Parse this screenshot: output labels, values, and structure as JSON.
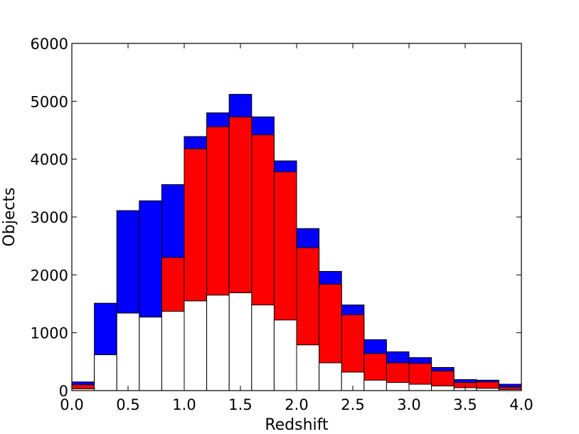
{
  "chart_data": {
    "type": "bar",
    "title": "",
    "xlabel": "Redshift",
    "ylabel": "Objects",
    "xlim": [
      0.0,
      4.0
    ],
    "ylim": [
      0,
      6000
    ],
    "x_ticks": [
      "0.0",
      "0.5",
      "1.0",
      "1.5",
      "2.0",
      "2.5",
      "3.0",
      "3.5",
      "4.0"
    ],
    "y_ticks": [
      "0",
      "1000",
      "2000",
      "3000",
      "4000",
      "5000",
      "6000"
    ],
    "grid": false,
    "legend": "none",
    "bin_edges": [
      0.0,
      0.2,
      0.4,
      0.6,
      0.8,
      1.0,
      1.2,
      1.4,
      1.6,
      1.8,
      2.0,
      2.2,
      2.4,
      2.6,
      2.8,
      3.0,
      3.2,
      3.4,
      3.6,
      3.8,
      4.0
    ],
    "series": [
      {
        "color": "#0000ff",
        "values": [
          150,
          1510,
          3110,
          3280,
          3560,
          4390,
          4800,
          5120,
          4730,
          3970,
          2800,
          2060,
          1480,
          880,
          670,
          570,
          400,
          190,
          180,
          110
        ]
      },
      {
        "color": "#ff0000",
        "values": [
          100,
          0,
          0,
          0,
          2300,
          4180,
          4560,
          4730,
          4420,
          3780,
          2470,
          1840,
          1310,
          640,
          480,
          470,
          340,
          140,
          150,
          60
        ]
      },
      {
        "color": "#ffffff",
        "values": [
          30,
          620,
          1340,
          1270,
          1370,
          1550,
          1650,
          1690,
          1480,
          1220,
          790,
          480,
          320,
          180,
          140,
          110,
          80,
          50,
          40,
          20
        ]
      }
    ]
  }
}
